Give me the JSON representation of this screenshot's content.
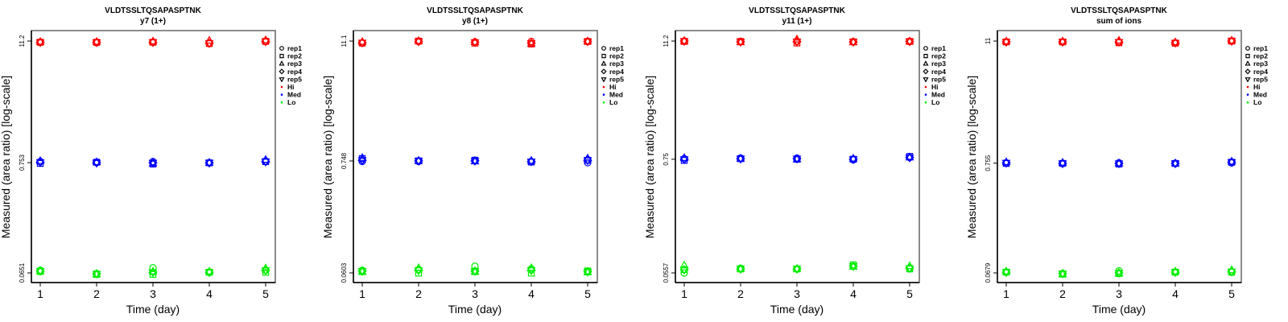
{
  "chart_data": [
    {
      "type": "scatter",
      "title": "VLDTSSLTQSAPASPTNK",
      "subtitle": "y7 (1+)",
      "xlabel": "Time (day)",
      "ylabel": "Measured (area ratio) [log-scale]",
      "yscale": "log",
      "x": [
        1,
        2,
        3,
        4,
        5
      ],
      "x_ticks": [
        "1",
        "2",
        "3",
        "4",
        "5"
      ],
      "y_ticks": [
        "11.2",
        "0.753",
        "0.0651"
      ],
      "y_tick_values": [
        11.2,
        0.753,
        0.0651
      ],
      "series": [
        {
          "level": "Hi",
          "rep": "rep1",
          "values": [
            10.9,
            10.8,
            10.9,
            10.6,
            11.2
          ]
        },
        {
          "level": "Hi",
          "rep": "rep2",
          "values": [
            10.9,
            10.9,
            10.9,
            10.6,
            11.1
          ]
        },
        {
          "level": "Hi",
          "rep": "rep3",
          "values": [
            11.0,
            11.0,
            11.1,
            11.3,
            11.4
          ]
        },
        {
          "level": "Hi",
          "rep": "rep4",
          "values": [
            10.9,
            10.9,
            10.9,
            10.7,
            11.1
          ]
        },
        {
          "level": "Hi",
          "rep": "rep5",
          "values": [
            10.9,
            10.9,
            10.9,
            10.7,
            11.1
          ]
        },
        {
          "level": "Med",
          "rep": "rep1",
          "values": [
            0.77,
            0.76,
            0.77,
            0.75,
            0.78
          ]
        },
        {
          "level": "Med",
          "rep": "rep2",
          "values": [
            0.74,
            0.76,
            0.73,
            0.75,
            0.77
          ]
        },
        {
          "level": "Med",
          "rep": "rep3",
          "values": [
            0.78,
            0.76,
            0.74,
            0.75,
            0.8
          ]
        },
        {
          "level": "Med",
          "rep": "rep4",
          "values": [
            0.76,
            0.75,
            0.75,
            0.75,
            0.77
          ]
        },
        {
          "level": "Med",
          "rep": "rep5",
          "values": [
            0.76,
            0.75,
            0.75,
            0.75,
            0.77
          ]
        },
        {
          "level": "Lo",
          "rep": "rep1",
          "values": [
            0.069,
            0.064,
            0.073,
            0.066,
            0.069
          ]
        },
        {
          "level": "Lo",
          "rep": "rep2",
          "values": [
            0.067,
            0.063,
            0.063,
            0.066,
            0.066
          ]
        },
        {
          "level": "Lo",
          "rep": "rep3",
          "values": [
            0.068,
            0.063,
            0.067,
            0.067,
            0.072
          ]
        },
        {
          "level": "Lo",
          "rep": "rep4",
          "values": [
            0.068,
            0.064,
            0.066,
            0.066,
            0.069
          ]
        },
        {
          "level": "Lo",
          "rep": "rep5",
          "values": [
            0.068,
            0.064,
            0.066,
            0.066,
            0.069
          ]
        }
      ]
    },
    {
      "type": "scatter",
      "title": "VLDTSSLTQSAPASPTNK",
      "subtitle": "y8 (1+)",
      "xlabel": "Time (day)",
      "ylabel": "Measured (area ratio) [log-scale]",
      "yscale": "log",
      "x": [
        1,
        2,
        3,
        4,
        5
      ],
      "x_ticks": [
        "1",
        "2",
        "3",
        "4",
        "5"
      ],
      "y_ticks": [
        "11.1",
        "0.748",
        "0.0603"
      ],
      "y_tick_values": [
        11.1,
        0.748,
        0.0603
      ],
      "series": [
        {
          "level": "Hi",
          "rep": "rep1",
          "values": [
            10.6,
            11.0,
            10.9,
            11.0,
            11.0
          ]
        },
        {
          "level": "Hi",
          "rep": "rep2",
          "values": [
            10.6,
            11.1,
            10.6,
            10.4,
            11.0
          ]
        },
        {
          "level": "Hi",
          "rep": "rep3",
          "values": [
            10.9,
            11.1,
            10.8,
            10.5,
            11.0
          ]
        },
        {
          "level": "Hi",
          "rep": "rep4",
          "values": [
            10.7,
            11.0,
            10.8,
            10.6,
            11.0
          ]
        },
        {
          "level": "Hi",
          "rep": "rep5",
          "values": [
            10.7,
            11.0,
            10.8,
            10.6,
            11.0
          ]
        },
        {
          "level": "Med",
          "rep": "rep1",
          "values": [
            0.74,
            0.74,
            0.76,
            0.74,
            0.72
          ]
        },
        {
          "level": "Med",
          "rep": "rep2",
          "values": [
            0.79,
            0.75,
            0.76,
            0.73,
            0.76
          ]
        },
        {
          "level": "Med",
          "rep": "rep3",
          "values": [
            0.8,
            0.75,
            0.74,
            0.75,
            0.79
          ]
        },
        {
          "level": "Med",
          "rep": "rep4",
          "values": [
            0.76,
            0.75,
            0.75,
            0.74,
            0.76
          ]
        },
        {
          "level": "Med",
          "rep": "rep5",
          "values": [
            0.76,
            0.75,
            0.75,
            0.74,
            0.76
          ]
        },
        {
          "level": "Lo",
          "rep": "rep1",
          "values": [
            0.064,
            0.065,
            0.07,
            0.066,
            0.063
          ]
        },
        {
          "level": "Lo",
          "rep": "rep2",
          "values": [
            0.062,
            0.06,
            0.062,
            0.06,
            0.063
          ]
        },
        {
          "level": "Lo",
          "rep": "rep3",
          "values": [
            0.062,
            0.067,
            0.062,
            0.067,
            0.061
          ]
        },
        {
          "level": "Lo",
          "rep": "rep4",
          "values": [
            0.063,
            0.064,
            0.063,
            0.064,
            0.062
          ]
        },
        {
          "level": "Lo",
          "rep": "rep5",
          "values": [
            0.063,
            0.064,
            0.063,
            0.064,
            0.062
          ]
        }
      ]
    },
    {
      "type": "scatter",
      "title": "VLDTSSLTQSAPASPTNK",
      "subtitle": "y11 (1+)",
      "xlabel": "Time (day)",
      "ylabel": "Measured (area ratio) [log-scale]",
      "yscale": "log",
      "x": [
        1,
        2,
        3,
        4,
        5
      ],
      "x_ticks": [
        "1",
        "2",
        "3",
        "4",
        "5"
      ],
      "y_ticks": [
        "11.2",
        "0.75",
        "0.0557"
      ],
      "y_tick_values": [
        11.2,
        0.75,
        0.0557
      ],
      "series": [
        {
          "level": "Hi",
          "rep": "rep1",
          "values": [
            11.2,
            11.1,
            11.1,
            11.0,
            11.1
          ]
        },
        {
          "level": "Hi",
          "rep": "rep2",
          "values": [
            11.1,
            11.1,
            10.7,
            11.0,
            11.1
          ]
        },
        {
          "level": "Hi",
          "rep": "rep3",
          "values": [
            11.2,
            10.9,
            11.6,
            10.9,
            11.1
          ]
        },
        {
          "level": "Hi",
          "rep": "rep4",
          "values": [
            11.2,
            11.0,
            11.1,
            11.0,
            11.1
          ]
        },
        {
          "level": "Hi",
          "rep": "rep5",
          "values": [
            11.2,
            11.0,
            11.1,
            11.0,
            11.1
          ]
        },
        {
          "level": "Med",
          "rep": "rep1",
          "values": [
            0.76,
            0.77,
            0.77,
            0.74,
            0.78
          ]
        },
        {
          "level": "Med",
          "rep": "rep2",
          "values": [
            0.73,
            0.76,
            0.75,
            0.75,
            0.8
          ]
        },
        {
          "level": "Med",
          "rep": "rep3",
          "values": [
            0.77,
            0.76,
            0.75,
            0.76,
            0.78
          ]
        },
        {
          "level": "Med",
          "rep": "rep4",
          "values": [
            0.75,
            0.76,
            0.76,
            0.75,
            0.78
          ]
        },
        {
          "level": "Med",
          "rep": "rep5",
          "values": [
            0.75,
            0.76,
            0.76,
            0.75,
            0.78
          ]
        },
        {
          "level": "Lo",
          "rep": "rep1",
          "values": [
            0.0557,
            0.062,
            0.061,
            0.065,
            0.062
          ]
        },
        {
          "level": "Lo",
          "rep": "rep2",
          "values": [
            0.06,
            0.061,
            0.061,
            0.067,
            0.061
          ]
        },
        {
          "level": "Lo",
          "rep": "rep3",
          "values": [
            0.066,
            0.061,
            0.061,
            0.064,
            0.065
          ]
        },
        {
          "level": "Lo",
          "rep": "rep4",
          "values": [
            0.06,
            0.061,
            0.061,
            0.065,
            0.062
          ]
        },
        {
          "level": "Lo",
          "rep": "rep5",
          "values": [
            0.06,
            0.061,
            0.061,
            0.065,
            0.062
          ]
        }
      ]
    },
    {
      "type": "scatter",
      "title": "VLDTSSLTQSAPASPTNK",
      "subtitle": "sum of ions",
      "xlabel": "Time (day)",
      "ylabel": "Measured (area ratio) [log-scale]",
      "yscale": "log",
      "x": [
        1,
        2,
        3,
        4,
        5
      ],
      "x_ticks": [
        "1",
        "2",
        "3",
        "4",
        "5"
      ],
      "y_ticks": [
        "11",
        "0.755",
        "0.0679"
      ],
      "y_tick_values": [
        11,
        0.755,
        0.0679
      ],
      "series": [
        {
          "level": "Hi",
          "rep": "rep1",
          "values": [
            10.8,
            10.8,
            10.7,
            10.6,
            11.0
          ]
        },
        {
          "level": "Hi",
          "rep": "rep2",
          "values": [
            10.8,
            10.8,
            10.6,
            10.5,
            11.0
          ]
        },
        {
          "level": "Hi",
          "rep": "rep3",
          "values": [
            10.9,
            10.9,
            11.1,
            10.7,
            11.1
          ]
        },
        {
          "level": "Hi",
          "rep": "rep4",
          "values": [
            10.8,
            10.8,
            10.8,
            10.6,
            11.0
          ]
        },
        {
          "level": "Hi",
          "rep": "rep5",
          "values": [
            10.8,
            10.8,
            10.8,
            10.6,
            11.0
          ]
        },
        {
          "level": "Med",
          "rep": "rep1",
          "values": [
            0.76,
            0.75,
            0.76,
            0.75,
            0.76
          ]
        },
        {
          "level": "Med",
          "rep": "rep2",
          "values": [
            0.75,
            0.75,
            0.74,
            0.75,
            0.77
          ]
        },
        {
          "level": "Med",
          "rep": "rep3",
          "values": [
            0.77,
            0.76,
            0.75,
            0.75,
            0.78
          ]
        },
        {
          "level": "Med",
          "rep": "rep4",
          "values": [
            0.76,
            0.75,
            0.75,
            0.75,
            0.77
          ]
        },
        {
          "level": "Med",
          "rep": "rep5",
          "values": [
            0.76,
            0.75,
            0.75,
            0.75,
            0.77
          ]
        },
        {
          "level": "Lo",
          "rep": "rep1",
          "values": [
            0.069,
            0.067,
            0.071,
            0.069,
            0.069
          ]
        },
        {
          "level": "Lo",
          "rep": "rep2",
          "values": [
            0.069,
            0.066,
            0.067,
            0.069,
            0.069
          ]
        },
        {
          "level": "Lo",
          "rep": "rep3",
          "values": [
            0.07,
            0.066,
            0.067,
            0.07,
            0.072
          ]
        },
        {
          "level": "Lo",
          "rep": "rep4",
          "values": [
            0.069,
            0.067,
            0.068,
            0.069,
            0.07
          ]
        },
        {
          "level": "Lo",
          "rep": "rep5",
          "values": [
            0.069,
            0.067,
            0.068,
            0.069,
            0.07
          ]
        }
      ]
    }
  ],
  "legend": {
    "placement": "right",
    "reps": [
      {
        "label": "rep1",
        "symbol": "circle"
      },
      {
        "label": "rep2",
        "symbol": "square"
      },
      {
        "label": "rep3",
        "symbol": "triangle-up"
      },
      {
        "label": "rep4",
        "symbol": "diamond"
      },
      {
        "label": "rep5",
        "symbol": "triangle-down"
      }
    ],
    "levels": [
      {
        "label": "Hi",
        "color": "#ff0000"
      },
      {
        "label": "Med",
        "color": "#0000ff"
      },
      {
        "label": "Lo",
        "color": "#00ee00"
      }
    ]
  }
}
